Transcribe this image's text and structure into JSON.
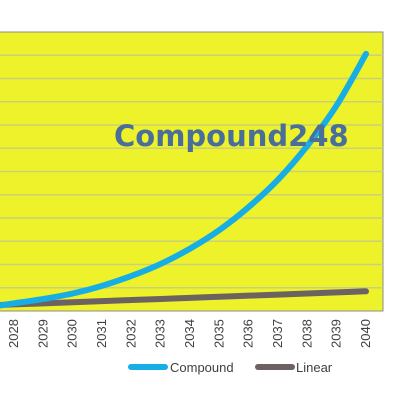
{
  "chart_data": {
    "type": "line",
    "title": "Compound248",
    "categories": [
      "2028",
      "2029",
      "2030",
      "2031",
      "2032",
      "2033",
      "2034",
      "2035",
      "2036",
      "2037",
      "2038",
      "2039",
      "2040"
    ],
    "x_start_extends_left": true,
    "series": [
      {
        "name": "Compound",
        "color": "#17ade5",
        "values": [
          0.2,
          0.6,
          1.1,
          1.8,
          2.7,
          3.8,
          5.2,
          6.9,
          9.0,
          11.5,
          14.6,
          18.3,
          23.0
        ]
      },
      {
        "name": "Linear",
        "color": "#6d6262",
        "values": [
          0.1,
          0.2,
          0.3,
          0.4,
          0.5,
          0.6,
          0.7,
          0.8,
          0.9,
          1.0,
          1.1,
          1.2,
          1.3
        ]
      }
    ],
    "ylim": [
      -0.5,
      25
    ],
    "grid": true,
    "legend_position": "bottom",
    "plot_background": "#eef22a"
  }
}
